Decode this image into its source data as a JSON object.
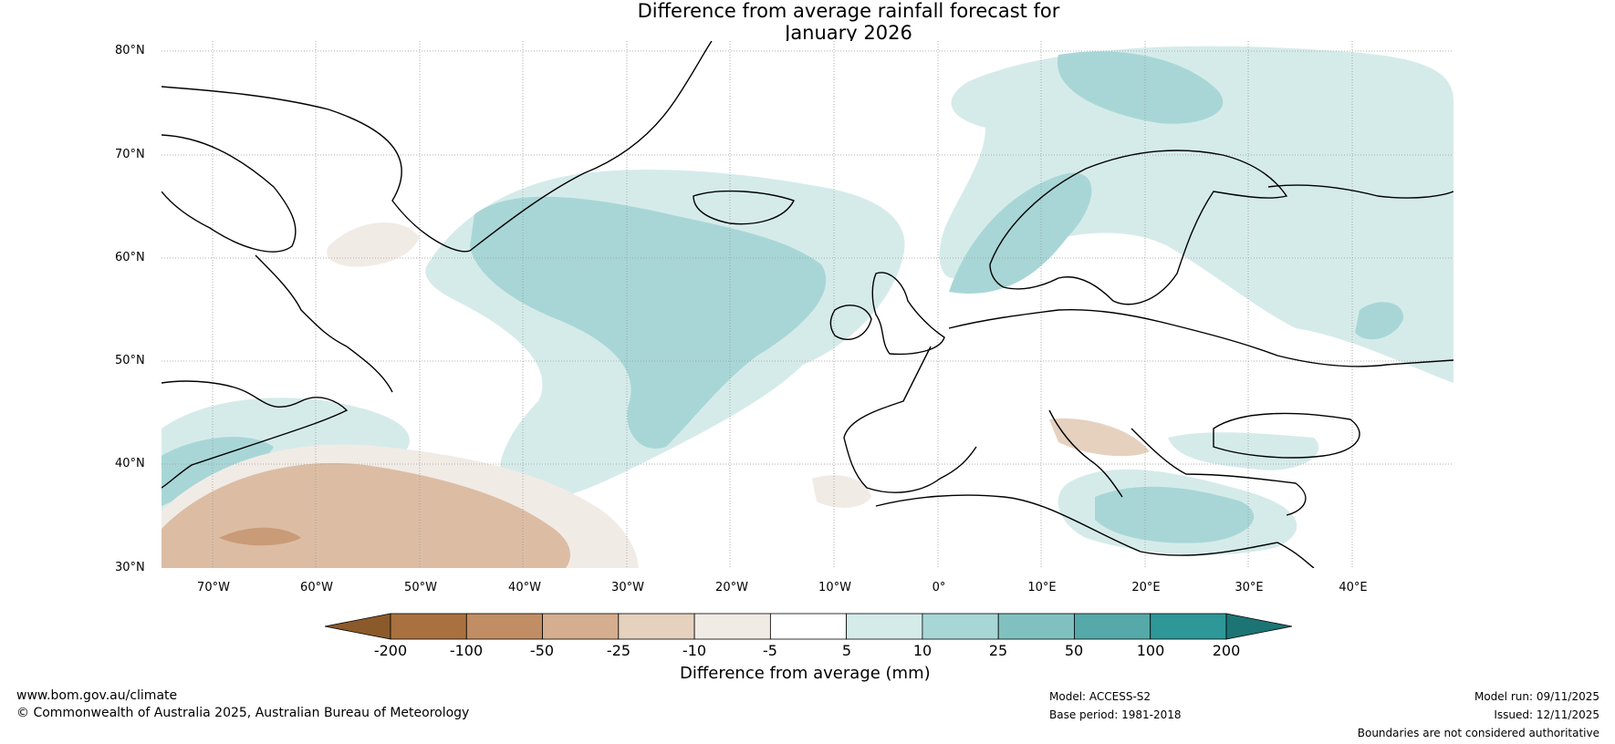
{
  "title": {
    "line1": "Difference from average rainfall forecast for",
    "line2": "January 2026"
  },
  "map": {
    "lat_labels": [
      "80°N",
      "70°N",
      "60°N",
      "50°N",
      "40°N",
      "30°N"
    ],
    "lon_labels": [
      "70°W",
      "60°W",
      "50°W",
      "40°W",
      "30°W",
      "20°W",
      "10°W",
      "0°",
      "10°E",
      "20°E",
      "30°E",
      "40°E"
    ]
  },
  "colorbar": {
    "title": "Difference from average (mm)",
    "ticks": [
      "-200",
      "-100",
      "-50",
      "-25",
      "-10",
      "-5",
      "5",
      "10",
      "25",
      "50",
      "100",
      "200"
    ],
    "colors": [
      "#8b5a2b",
      "#a9713f",
      "#c08d64",
      "#d4ae8e",
      "#e6d1bf",
      "#f1ebe6",
      "#ffffff",
      "#d5ebea",
      "#a8d6d6",
      "#80c1c0",
      "#55a9a9",
      "#2e9797",
      "#1d7474"
    ]
  },
  "footer": {
    "website": "www.bom.gov.au/climate",
    "copyright": "© Commonwealth of Australia 2025, Australian Bureau of Meteorology",
    "model": "Model: ACCESS-S2",
    "base_period": "Base period: 1981-2018",
    "model_run": "Model run: 09/11/2025",
    "issued": "Issued: 12/11/2025",
    "disclaimer": "Boundaries are not considered authoritative"
  }
}
